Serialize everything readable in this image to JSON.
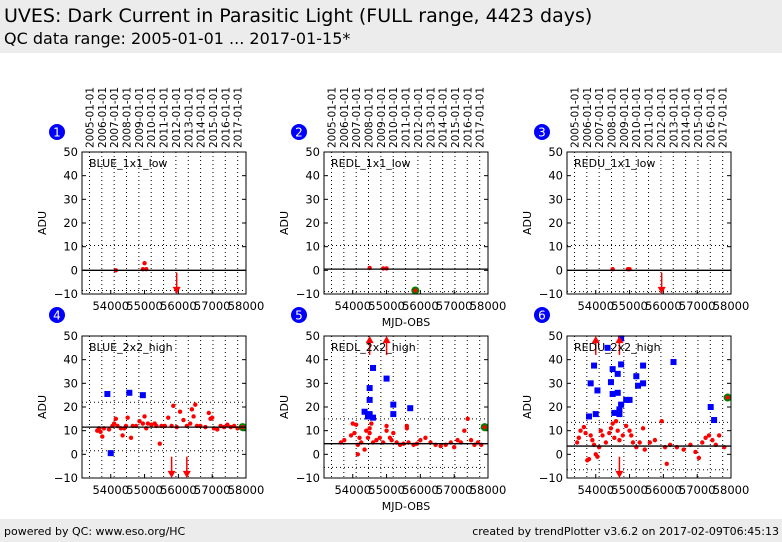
{
  "header": {
    "title": "UVES: Dark Current in Parasitic Light (FULL range, 4423 days)",
    "subtitle": "QC data range: 2005-01-01 ... 2017-01-15*"
  },
  "footer": {
    "left": "powered by QC: www.eso.org/HC",
    "right": "created by trendPlotter v3.6.2 on 2017-02-09T06:45:13"
  },
  "colors": {
    "point": "#ff0000",
    "outlier": "#0000ff",
    "last": "#008000",
    "badge": "#0000ff"
  },
  "chart_data": {
    "type": "scatter",
    "xlabel": "MJD-OBS",
    "ylabel": "ADU",
    "xlim": [
      53150,
      58000
    ],
    "ylim": [
      -10,
      50
    ],
    "xticks": [
      54000,
      55000,
      56000,
      57000,
      58000
    ],
    "yticks": [
      -10,
      0,
      10,
      20,
      30,
      40,
      50
    ],
    "top_axis": {
      "values": [
        53371,
        53736,
        54101,
        54466,
        54832,
        55197,
        55562,
        55927,
        56293,
        56658,
        57023,
        57388,
        57754
      ],
      "labels": [
        "2005-01-01",
        "2006-01-01",
        "2007-01-01",
        "2008-01-01",
        "2009-01-01",
        "2010-01-01",
        "2011-01-01",
        "2012-01-01",
        "2013-01-01",
        "2014-01-01",
        "2015-01-01",
        "2016-01-01",
        "2017-01-01"
      ]
    },
    "panels": [
      {
        "number": "1",
        "name": "BLUE_1x1_low",
        "ref": 0,
        "thresholds": [
          10.5,
          -8.5
        ],
        "points": [
          [
            54150,
            0
          ],
          [
            54950,
            0.5
          ],
          [
            55000,
            3
          ],
          [
            55050,
            0.5
          ]
        ],
        "outliers": [],
        "last": [],
        "arrows": [
          [
            55950,
            "down"
          ]
        ]
      },
      {
        "number": "2",
        "name": "REDL_1x1_low",
        "ref": 0.5,
        "thresholds": [
          10.5,
          -9
        ],
        "points": [
          [
            54500,
            1
          ],
          [
            54900,
            0.8
          ],
          [
            55000,
            0.8
          ],
          [
            55850,
            -8.5
          ]
        ],
        "outliers": [],
        "last": [
          [
            55850,
            -8.5
          ]
        ],
        "arrows": []
      },
      {
        "number": "3",
        "name": "REDU_1x1_low",
        "ref": 0,
        "thresholds": [
          10.5,
          -9
        ],
        "points": [
          [
            54500,
            0.5
          ],
          [
            54950,
            0.5
          ],
          [
            55000,
            0.5
          ]
        ],
        "outliers": [],
        "last": [],
        "arrows": [
          [
            55950,
            "down"
          ]
        ]
      },
      {
        "number": "4",
        "name": "BLUE_2x2_high",
        "ref": 11.5,
        "thresholds": [
          22,
          1.5
        ],
        "points": [
          [
            53600,
            10
          ],
          [
            53650,
            11
          ],
          [
            53700,
            9.5
          ],
          [
            53750,
            7.5
          ],
          [
            53800,
            11
          ],
          [
            53950,
            10.5
          ],
          [
            54050,
            12
          ],
          [
            54100,
            13
          ],
          [
            54150,
            15
          ],
          [
            54200,
            12
          ],
          [
            54300,
            11
          ],
          [
            54350,
            8
          ],
          [
            54400,
            11
          ],
          [
            54450,
            12
          ],
          [
            54500,
            15.5
          ],
          [
            54600,
            7
          ],
          [
            54650,
            12
          ],
          [
            54750,
            12
          ],
          [
            54850,
            14
          ],
          [
            54950,
            13
          ],
          [
            55000,
            16
          ],
          [
            55050,
            11
          ],
          [
            55100,
            13
          ],
          [
            55200,
            12.5
          ],
          [
            55300,
            13
          ],
          [
            55350,
            12
          ],
          [
            55450,
            4.5
          ],
          [
            55500,
            12
          ],
          [
            55600,
            12
          ],
          [
            55700,
            15.5
          ],
          [
            55800,
            12
          ],
          [
            55850,
            20.5
          ],
          [
            55950,
            11.5
          ],
          [
            56050,
            18
          ],
          [
            56150,
            14.5
          ],
          [
            56250,
            12
          ],
          [
            56350,
            13
          ],
          [
            56400,
            19
          ],
          [
            56450,
            16
          ],
          [
            56500,
            21
          ],
          [
            56550,
            12
          ],
          [
            56650,
            12
          ],
          [
            56800,
            11.5
          ],
          [
            56900,
            17.5
          ],
          [
            56950,
            15
          ],
          [
            57000,
            15.5
          ],
          [
            57050,
            11
          ],
          [
            57150,
            10.5
          ],
          [
            57250,
            12
          ],
          [
            57350,
            11.5
          ],
          [
            57450,
            12.5
          ],
          [
            57550,
            11.5
          ],
          [
            57650,
            12
          ],
          [
            57750,
            11
          ],
          [
            57900,
            11.5
          ]
        ],
        "outliers": [
          [
            53900,
            25.5
          ],
          [
            54550,
            26
          ],
          [
            54950,
            25
          ],
          [
            54000,
            0.5
          ]
        ],
        "last": [
          [
            57900,
            11.5
          ]
        ],
        "arrows": [
          [
            55800,
            "down"
          ],
          [
            56250,
            "down"
          ]
        ]
      },
      {
        "number": "5",
        "name": "REDL_2x2_high",
        "ref": 4.5,
        "thresholds": [
          15,
          -5.5
        ],
        "points": [
          [
            53650,
            5
          ],
          [
            53750,
            6
          ],
          [
            53950,
            8
          ],
          [
            54000,
            13
          ],
          [
            54050,
            9
          ],
          [
            54100,
            12.5
          ],
          [
            54150,
            0
          ],
          [
            54150,
            4
          ],
          [
            54200,
            7
          ],
          [
            54250,
            5
          ],
          [
            54350,
            2
          ],
          [
            54400,
            10
          ],
          [
            54450,
            7
          ],
          [
            54500,
            11
          ],
          [
            54500,
            9
          ],
          [
            54550,
            13
          ],
          [
            54600,
            5
          ],
          [
            54700,
            6
          ],
          [
            54800,
            7
          ],
          [
            54900,
            5
          ],
          [
            55000,
            10
          ],
          [
            55000,
            12
          ],
          [
            55100,
            7
          ],
          [
            55150,
            6
          ],
          [
            55200,
            9
          ],
          [
            55300,
            5
          ],
          [
            55400,
            4
          ],
          [
            55500,
            4.5
          ],
          [
            55600,
            11
          ],
          [
            55600,
            12
          ],
          [
            55650,
            5
          ],
          [
            55800,
            4
          ],
          [
            55900,
            4.5
          ],
          [
            56000,
            6
          ],
          [
            56150,
            7
          ],
          [
            56300,
            5
          ],
          [
            56450,
            4
          ],
          [
            56600,
            3.5
          ],
          [
            56750,
            4
          ],
          [
            56900,
            5
          ],
          [
            57000,
            3
          ],
          [
            57100,
            6
          ],
          [
            57200,
            5
          ],
          [
            57300,
            10
          ],
          [
            57400,
            15
          ],
          [
            57500,
            6
          ],
          [
            57600,
            4
          ],
          [
            57700,
            5
          ],
          [
            57800,
            4
          ],
          [
            57900,
            11.5
          ]
        ],
        "outliers": [
          [
            54350,
            18
          ],
          [
            54450,
            16
          ],
          [
            54500,
            17
          ],
          [
            54500,
            23
          ],
          [
            54500,
            28
          ],
          [
            54600,
            36.5
          ],
          [
            54600,
            15.5
          ],
          [
            55000,
            32
          ],
          [
            55200,
            21
          ],
          [
            55200,
            17
          ],
          [
            55700,
            19.5
          ]
        ],
        "last": [
          [
            57900,
            11.5
          ]
        ],
        "arrows": [
          [
            54500,
            "up"
          ],
          [
            55000,
            "up"
          ]
        ]
      },
      {
        "number": "6",
        "name": "REDU_2x2_high",
        "ref": 3.5,
        "thresholds": [
          13.5,
          -6.5
        ],
        "points": [
          [
            53450,
            5
          ],
          [
            53500,
            7
          ],
          [
            53550,
            10
          ],
          [
            53650,
            11.5
          ],
          [
            53700,
            9
          ],
          [
            53750,
            -2.5
          ],
          [
            53800,
            -2
          ],
          [
            53850,
            8
          ],
          [
            53900,
            6
          ],
          [
            53950,
            4
          ],
          [
            54000,
            0
          ],
          [
            54050,
            -1
          ],
          [
            54100,
            3
          ],
          [
            54150,
            10
          ],
          [
            54200,
            8
          ],
          [
            54300,
            5
          ],
          [
            54400,
            9
          ],
          [
            54450,
            11
          ],
          [
            54500,
            13
          ],
          [
            54550,
            7
          ],
          [
            54600,
            14
          ],
          [
            54650,
            10
          ],
          [
            54700,
            6
          ],
          [
            54800,
            8
          ],
          [
            54900,
            12
          ],
          [
            55000,
            10
          ],
          [
            55050,
            8
          ],
          [
            55100,
            5
          ],
          [
            55200,
            3
          ],
          [
            55300,
            5
          ],
          [
            55400,
            11
          ],
          [
            55450,
            2
          ],
          [
            55600,
            5
          ],
          [
            55750,
            6
          ],
          [
            55950,
            14
          ],
          [
            56050,
            3
          ],
          [
            56100,
            -4
          ],
          [
            56200,
            4
          ],
          [
            56400,
            3
          ],
          [
            56600,
            2
          ],
          [
            56800,
            4
          ],
          [
            56950,
            1
          ],
          [
            57050,
            -1.5
          ],
          [
            57150,
            5
          ],
          [
            57250,
            7
          ],
          [
            57350,
            8
          ],
          [
            57450,
            6
          ],
          [
            57550,
            4
          ],
          [
            57650,
            8
          ],
          [
            57800,
            3
          ],
          [
            57900,
            24
          ]
        ],
        "outliers": [
          [
            53800,
            16
          ],
          [
            53850,
            30
          ],
          [
            53950,
            37.5
          ],
          [
            54000,
            17
          ],
          [
            54050,
            27
          ],
          [
            54350,
            45
          ],
          [
            54450,
            30.5
          ],
          [
            54500,
            25.5
          ],
          [
            54500,
            36
          ],
          [
            54550,
            17.5
          ],
          [
            54650,
            34
          ],
          [
            54650,
            26
          ],
          [
            54700,
            17
          ],
          [
            54700,
            19
          ],
          [
            54750,
            21
          ],
          [
            54750,
            38
          ],
          [
            54750,
            49
          ],
          [
            54900,
            23
          ],
          [
            55000,
            23
          ],
          [
            55200,
            33
          ],
          [
            55250,
            29
          ],
          [
            55400,
            37.5
          ],
          [
            55400,
            30
          ],
          [
            56300,
            39
          ],
          [
            57400,
            20
          ],
          [
            57500,
            14.5
          ]
        ],
        "last": [
          [
            57900,
            24
          ]
        ],
        "arrows": [
          [
            54000,
            "up"
          ],
          [
            54700,
            "up"
          ],
          [
            54700,
            "down"
          ]
        ]
      }
    ]
  }
}
